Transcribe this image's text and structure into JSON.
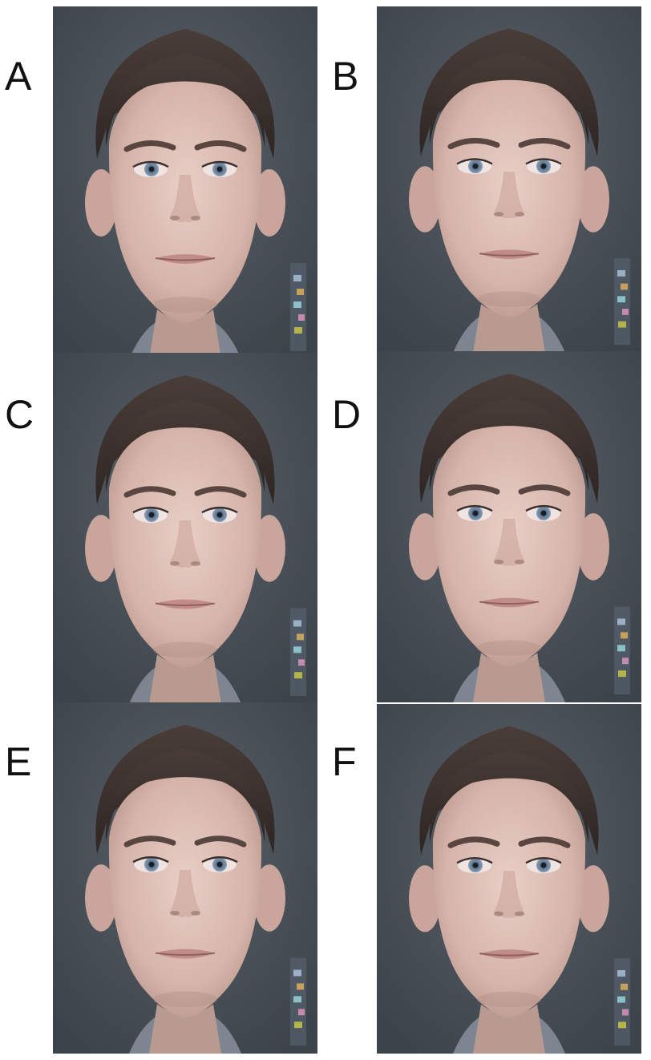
{
  "figure": {
    "panels": [
      {
        "id": "a",
        "label": "A"
      },
      {
        "id": "b",
        "label": "B"
      },
      {
        "id": "c",
        "label": "C"
      },
      {
        "id": "d",
        "label": "D"
      },
      {
        "id": "e",
        "label": "E"
      },
      {
        "id": "f",
        "label": "F"
      }
    ]
  }
}
